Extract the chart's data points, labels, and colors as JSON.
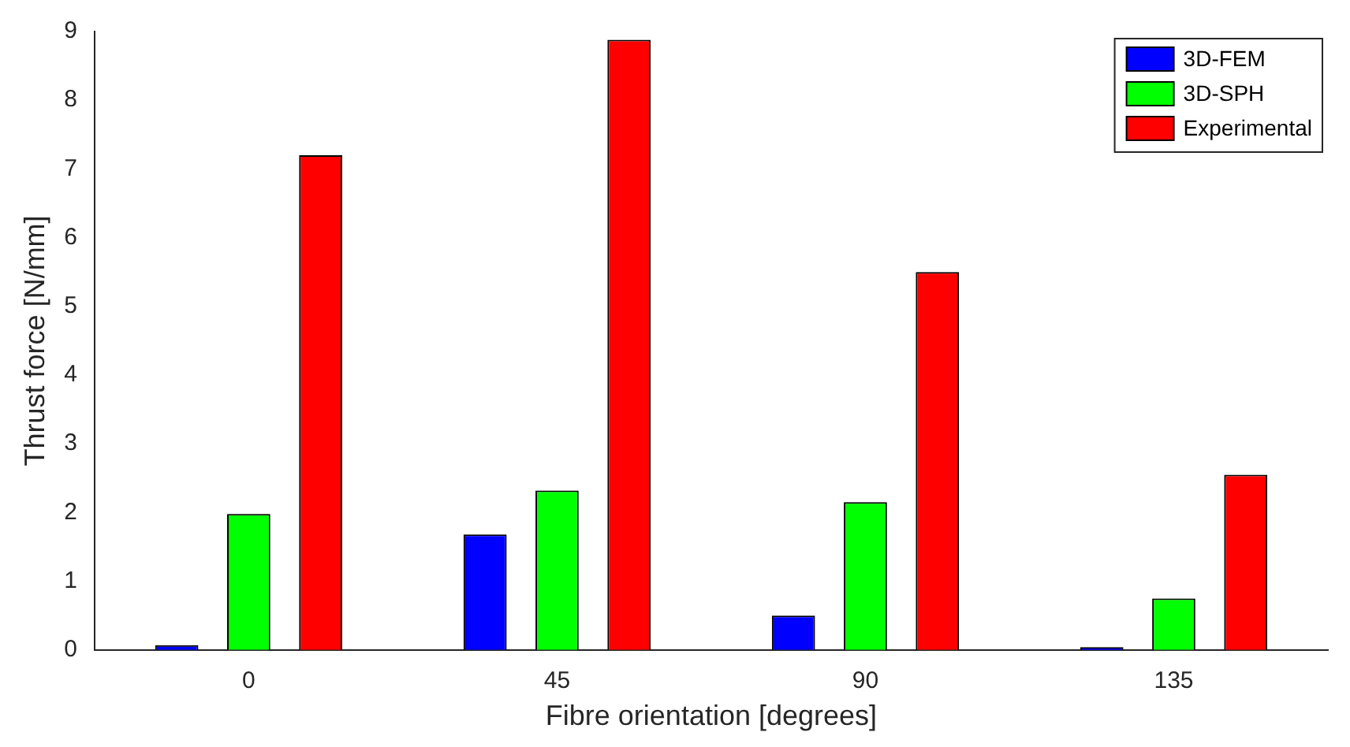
{
  "chart_data": {
    "type": "bar",
    "xlabel": "Fibre orientation [degrees]",
    "ylabel": "Thrust force [N/mm]",
    "categories": [
      "0",
      "45",
      "90",
      "135"
    ],
    "series": [
      {
        "name": "3D-FEM",
        "color": "#0000ff",
        "values": [
          0.07,
          1.68,
          0.5,
          0.04
        ]
      },
      {
        "name": "3D-SPH",
        "color": "#00ff00",
        "values": [
          1.98,
          2.32,
          2.15,
          0.75
        ]
      },
      {
        "name": "Experimental",
        "color": "#ff0000",
        "values": [
          7.2,
          8.88,
          5.5,
          2.55
        ]
      }
    ],
    "ylim": [
      0,
      9
    ],
    "yticks": [
      0,
      1,
      2,
      3,
      4,
      5,
      6,
      7,
      8,
      9
    ],
    "grid": false,
    "legend": "top right"
  }
}
